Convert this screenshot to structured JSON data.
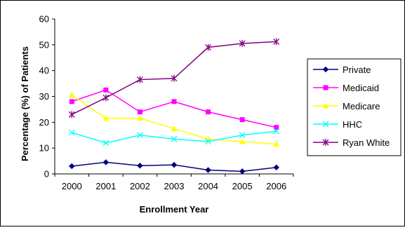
{
  "chart_data": {
    "type": "line",
    "title": "",
    "xlabel": "Enrollment Year",
    "ylabel": "Percentage (%) of Patients",
    "categories": [
      "2000",
      "2001",
      "2002",
      "2003",
      "2004",
      "2005",
      "2006"
    ],
    "ylim": [
      0,
      60
    ],
    "yticks": [
      "0",
      "10",
      "20",
      "30",
      "40",
      "50",
      "60"
    ],
    "grid": false,
    "legend_position": "right",
    "series": [
      {
        "name": "Private",
        "color": "#000080",
        "marker": "diamond",
        "values": [
          3,
          4.5,
          3.2,
          3.5,
          1.5,
          1,
          2.5
        ]
      },
      {
        "name": "Medicaid",
        "color": "#FF00FF",
        "marker": "square",
        "values": [
          28,
          32.5,
          24,
          28,
          24,
          21,
          18
        ]
      },
      {
        "name": "Medicare",
        "color": "#FFFF00",
        "marker": "triangle",
        "values": [
          30.5,
          21.5,
          21.5,
          17.5,
          13.5,
          12.5,
          11.5
        ]
      },
      {
        "name": "HHC",
        "color": "#00FFFF",
        "marker": "x",
        "values": [
          16,
          12,
          15,
          13.5,
          12.5,
          15,
          16.5
        ]
      },
      {
        "name": "Ryan White",
        "color": "#800080",
        "marker": "star",
        "values": [
          23,
          29.5,
          36.5,
          37,
          49,
          50.5,
          51.2
        ]
      }
    ]
  }
}
